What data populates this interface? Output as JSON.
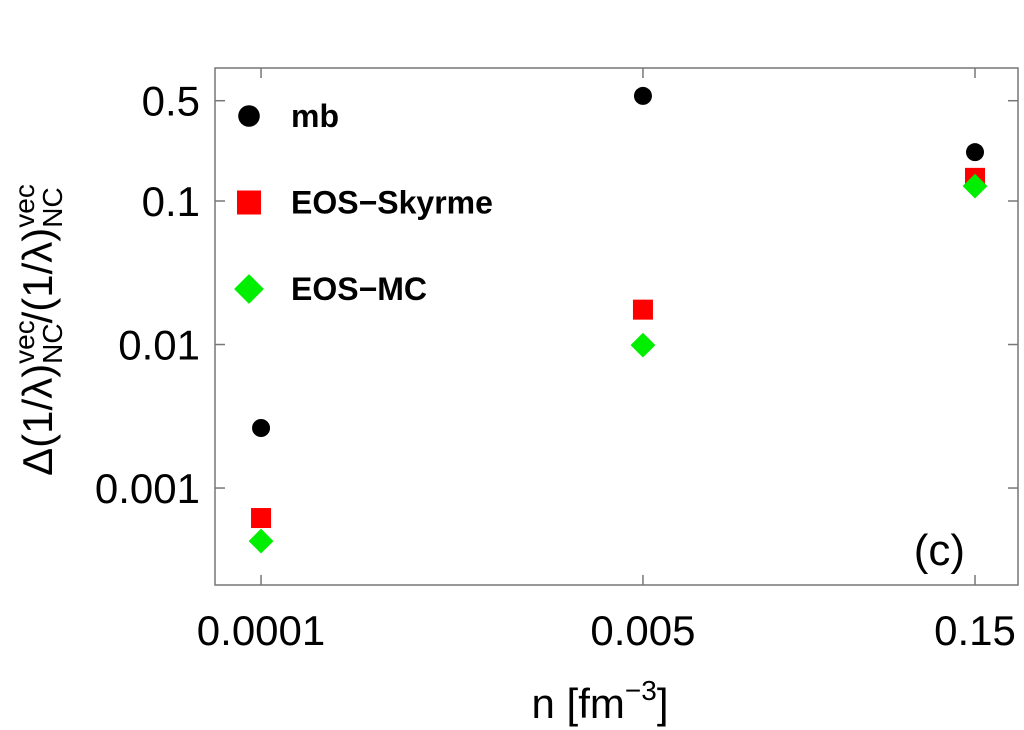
{
  "chart_data": {
    "type": "scatter",
    "x": [
      0.0001,
      0.005,
      0.15
    ],
    "series": [
      {
        "name": "mb",
        "color": "#000000",
        "marker": "circle",
        "values": [
          0.00262,
          0.54,
          0.219
        ]
      },
      {
        "name": "EOS−Skyrme",
        "color": "#ff0000",
        "marker": "square",
        "values": [
          0.000618,
          0.0175,
          0.145
        ]
      },
      {
        "name": "EOS−MC",
        "color": "#00ee00",
        "marker": "diamond",
        "values": [
          0.000427,
          0.0099,
          0.127
        ]
      }
    ],
    "xscale": "log",
    "yscale": "log",
    "xlim": [
      6.24e-05,
      0.233
    ],
    "ylim": [
      0.000211,
      0.845
    ],
    "xticks": [
      0.0001,
      0.005,
      0.15
    ],
    "yticks": [
      0.5,
      0.1,
      0.01,
      0.001
    ],
    "xlabel": [
      {
        "text": "n [fm"
      },
      {
        "text": "−3",
        "shift": "sup"
      },
      {
        "text": "]"
      }
    ],
    "ylabel": [
      {
        "text": "Δ(1/λ)"
      },
      {
        "text": "vec",
        "shift": "sup"
      },
      {
        "text": "NC",
        "shift": "sub"
      },
      {
        "text": "/(1/λ)"
      },
      {
        "text": "vec",
        "shift": "sup"
      },
      {
        "text": "NC",
        "shift": "sub"
      }
    ],
    "annotation": "(c)",
    "legend": "upper left",
    "grid": false
  }
}
